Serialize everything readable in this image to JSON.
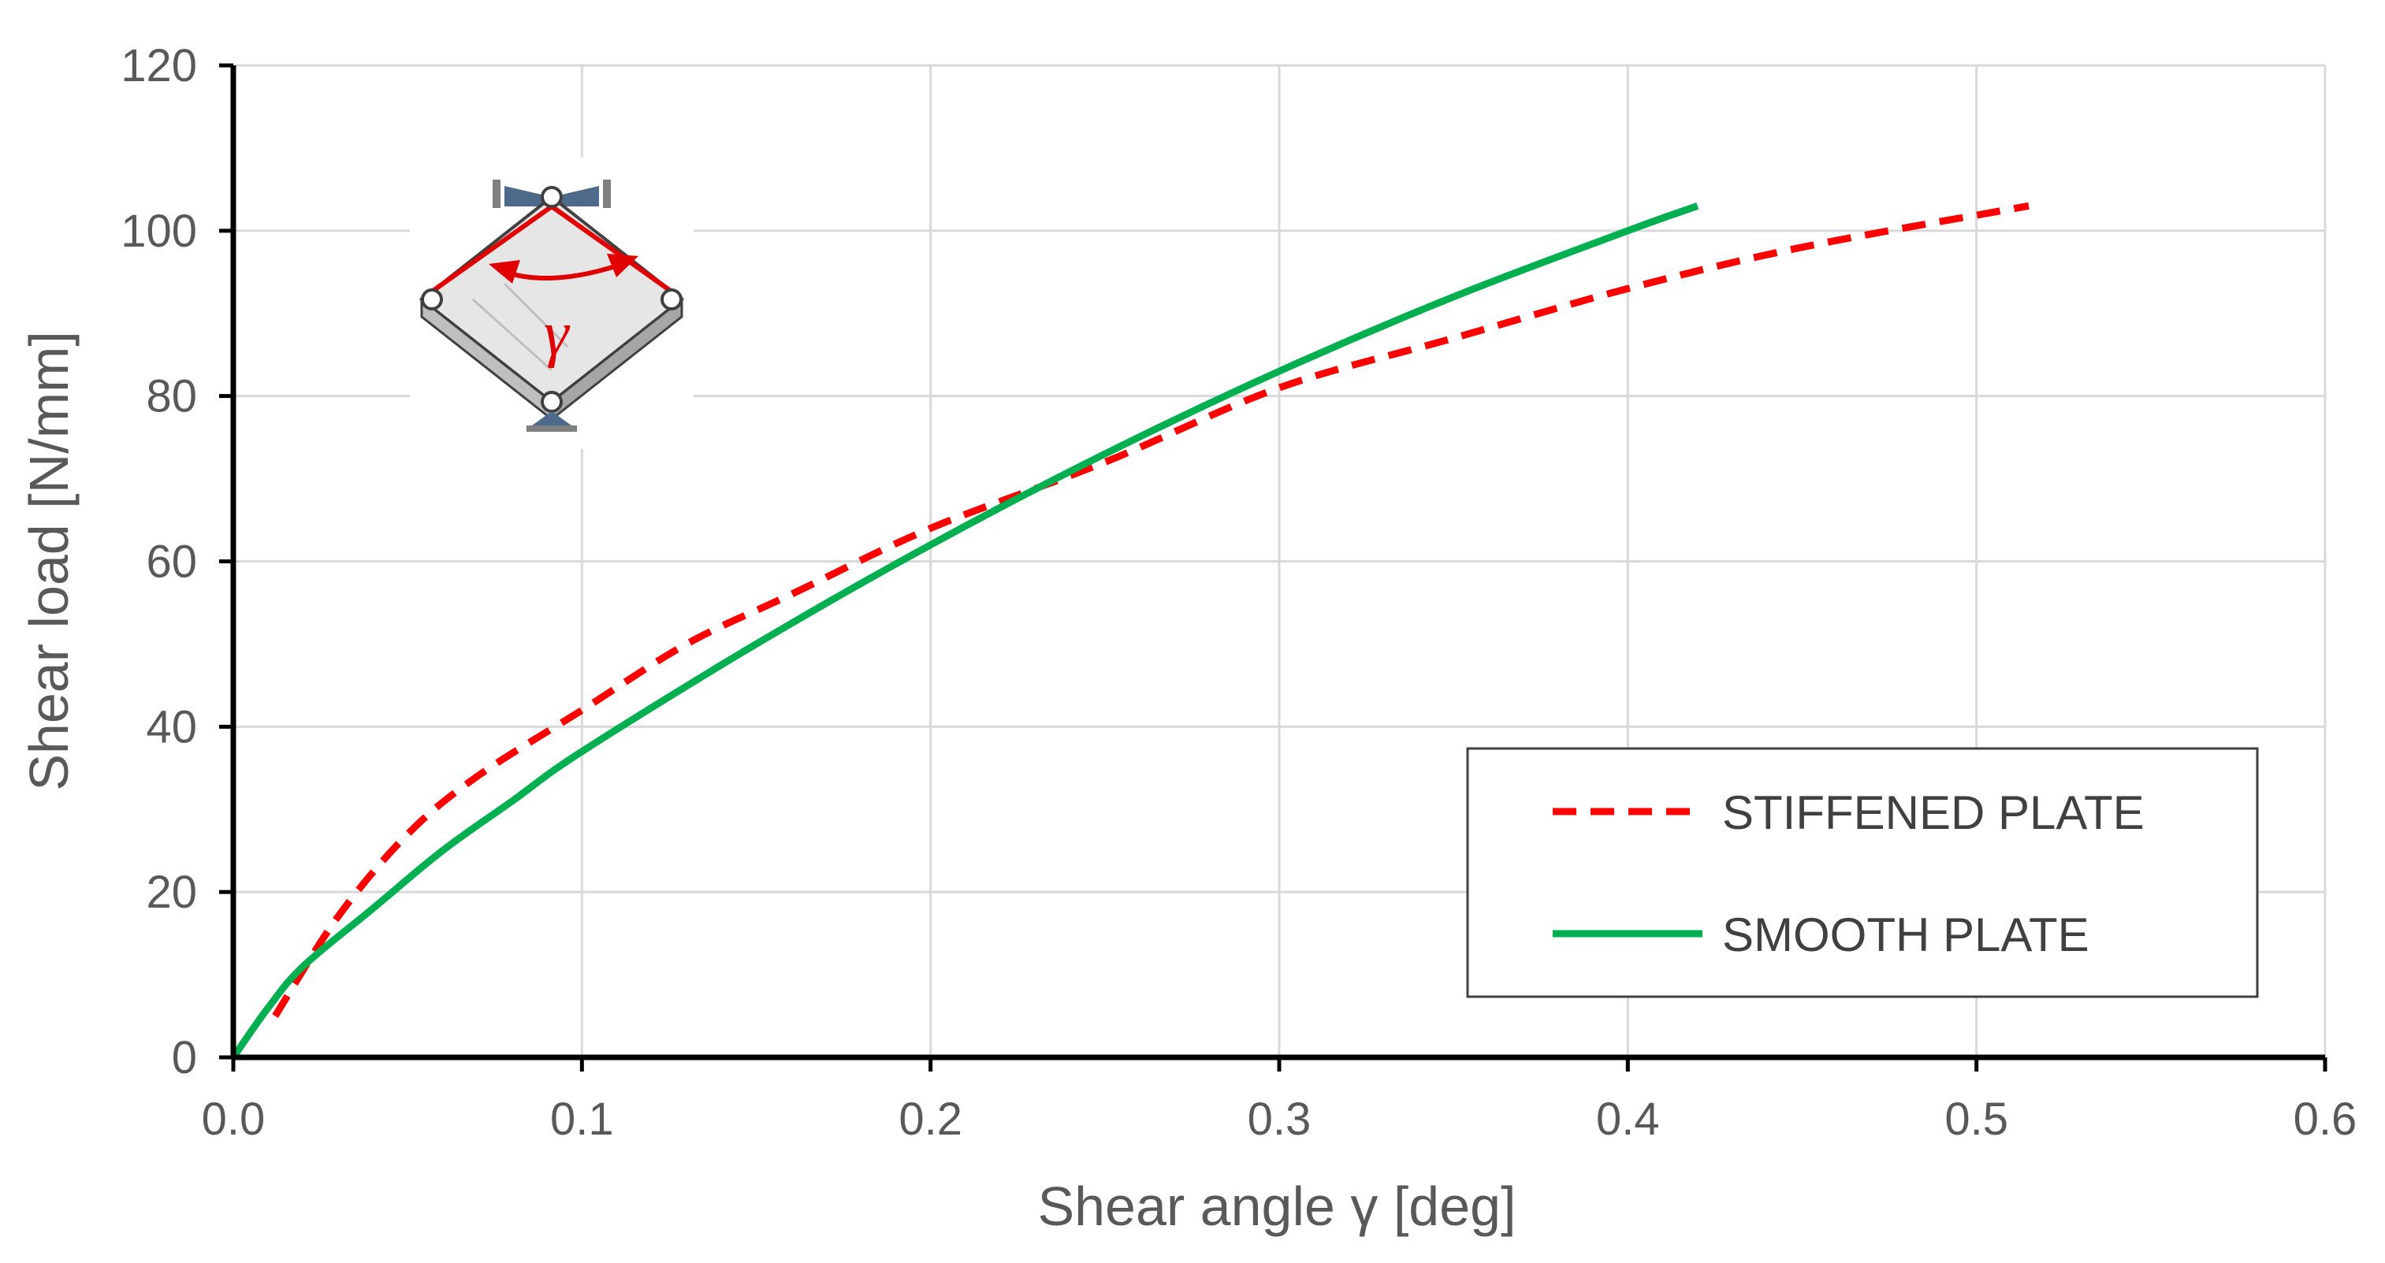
{
  "chart_data": {
    "type": "line",
    "xlabel": "Shear angle γ [deg]",
    "ylabel": "Shear load [N/mm]",
    "xlim": [
      0,
      0.6
    ],
    "ylim": [
      0,
      120
    ],
    "x_ticks": [
      "0.0",
      "0.1",
      "0.2",
      "0.3",
      "0.4",
      "0.5",
      "0.6"
    ],
    "y_ticks": [
      "0",
      "20",
      "40",
      "60",
      "80",
      "100",
      "120"
    ],
    "grid": true,
    "legend_position": "bottom-right",
    "series": [
      {
        "name": "STIFFENED PLATE",
        "style": "dashed",
        "color": "#ff0000",
        "x": [
          0.012,
          0.03,
          0.05,
          0.07,
          0.1,
          0.13,
          0.16,
          0.2,
          0.25,
          0.3,
          0.35,
          0.4,
          0.45,
          0.515
        ],
        "y": [
          5,
          17,
          27,
          34,
          42,
          50,
          56,
          64,
          72,
          81,
          87,
          93,
          98,
          103
        ]
      },
      {
        "name": "SMOOTH PLATE",
        "style": "solid",
        "color": "#00b050",
        "x": [
          0,
          0.01,
          0.02,
          0.04,
          0.06,
          0.08,
          0.1,
          0.15,
          0.2,
          0.25,
          0.3,
          0.35,
          0.4,
          0.42
        ],
        "y": [
          0,
          6,
          11,
          18,
          25,
          31,
          37,
          50,
          62,
          73,
          83,
          92,
          100,
          103
        ]
      }
    ]
  }
}
